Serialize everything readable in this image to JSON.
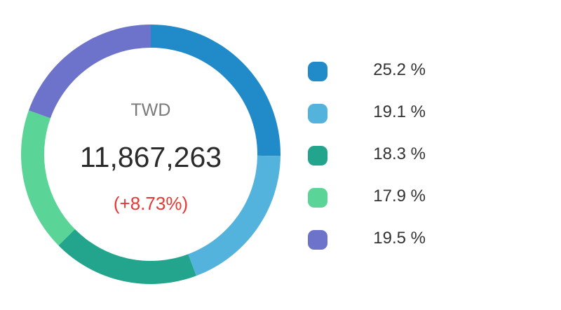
{
  "summary": {
    "currency": "TWD",
    "total": "11,867,263",
    "change": "(+8.73%)",
    "change_color": "#e53935"
  },
  "chart_data": {
    "type": "pie",
    "variant": "donut",
    "unit": "%",
    "values": [
      25.2,
      19.1,
      18.3,
      17.9,
      19.5
    ],
    "labels": [
      "25.2 %",
      "19.1 %",
      "18.3 %",
      "17.9 %",
      "19.5 %"
    ],
    "colors": [
      "#218bc9",
      "#53b3dd",
      "#23a58d",
      "#5bd597",
      "#6d73cb"
    ],
    "start": "12 o'clock",
    "direction": "clockwise",
    "legend_position": "right"
  }
}
